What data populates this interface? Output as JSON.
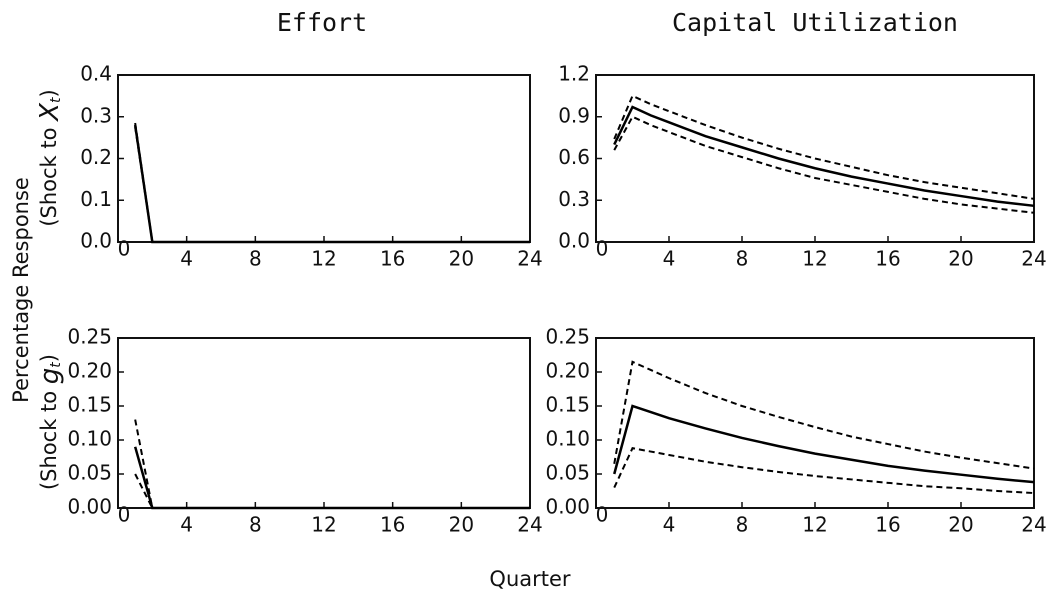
{
  "column_titles": [
    "Effort",
    "Capital Utilization"
  ],
  "y_label": "Percentage Response",
  "row_labels": [
    {
      "prefix": "(Shock to ",
      "symbol": "X",
      "subscript": "t",
      "suffix": ")"
    },
    {
      "prefix": "(Shock to ",
      "symbol": "g",
      "subscript": "t",
      "suffix": ")"
    }
  ],
  "x_label": "Quarter",
  "chart_data": [
    {
      "type": "line",
      "x": [
        1,
        2,
        3,
        4,
        6,
        8,
        10,
        12,
        14,
        16,
        18,
        20,
        22,
        24
      ],
      "series": [
        {
          "color": "#000000",
          "dashed": false,
          "values": [
            0.28,
            0,
            0,
            0,
            0,
            0,
            0,
            0,
            0,
            0,
            0,
            0,
            0,
            0
          ]
        },
        {
          "color": "#000000",
          "dashed": true,
          "values": [
            0.285,
            0,
            0,
            0,
            0,
            0,
            0,
            0,
            0,
            0,
            0,
            0,
            0,
            0
          ]
        },
        {
          "color": "#000000",
          "dashed": true,
          "values": [
            0.275,
            0,
            0,
            0,
            0,
            0,
            0,
            0,
            0,
            0,
            0,
            0,
            0,
            0
          ]
        }
      ],
      "xlim": [
        0,
        24
      ],
      "xticks": [
        0,
        4,
        8,
        12,
        16,
        20,
        24
      ],
      "ylim": [
        0,
        0.4
      ],
      "yticks": [
        {
          "value": 0,
          "label": "0.0"
        },
        0.1,
        0.2,
        0.3,
        0.4
      ]
    },
    {
      "type": "line",
      "x": [
        1,
        2,
        3,
        4,
        6,
        8,
        10,
        12,
        14,
        16,
        18,
        20,
        22,
        24
      ],
      "series": [
        {
          "color": "#000000",
          "dashed": false,
          "values": [
            0.7,
            0.97,
            0.91,
            0.86,
            0.76,
            0.68,
            0.6,
            0.53,
            0.47,
            0.42,
            0.37,
            0.33,
            0.29,
            0.26
          ]
        },
        {
          "color": "#000000",
          "dashed": true,
          "values": [
            0.74,
            1.05,
            0.99,
            0.94,
            0.84,
            0.75,
            0.67,
            0.6,
            0.54,
            0.48,
            0.43,
            0.39,
            0.35,
            0.31
          ]
        },
        {
          "color": "#000000",
          "dashed": true,
          "values": [
            0.66,
            0.9,
            0.84,
            0.79,
            0.69,
            0.61,
            0.53,
            0.46,
            0.41,
            0.36,
            0.31,
            0.27,
            0.24,
            0.21
          ]
        }
      ],
      "xlim": [
        0,
        24
      ],
      "xticks": [
        0,
        4,
        8,
        12,
        16,
        20,
        24
      ],
      "ylim": [
        0,
        1.2
      ],
      "yticks": [
        {
          "value": 0,
          "label": "0.0"
        },
        0.3,
        0.6,
        0.9,
        1.2
      ]
    },
    {
      "type": "line",
      "x": [
        1,
        2,
        3,
        4,
        6,
        8,
        10,
        12,
        14,
        16,
        18,
        20,
        22,
        24
      ],
      "series": [
        {
          "color": "#000000",
          "dashed": false,
          "values": [
            0.09,
            0,
            0,
            0,
            0,
            0,
            0,
            0,
            0,
            0,
            0,
            0,
            0,
            0
          ]
        },
        {
          "color": "#000000",
          "dashed": true,
          "values": [
            0.13,
            0,
            0,
            0,
            0,
            0,
            0,
            0,
            0,
            0,
            0,
            0,
            0,
            0
          ]
        },
        {
          "color": "#000000",
          "dashed": true,
          "values": [
            0.05,
            0,
            0,
            0,
            0,
            0,
            0,
            0,
            0,
            0,
            0,
            0,
            0,
            0
          ]
        }
      ],
      "xlim": [
        0,
        24
      ],
      "xticks": [
        0,
        4,
        8,
        12,
        16,
        20,
        24
      ],
      "ylim": [
        0,
        0.25
      ],
      "yticks": [
        {
          "value": 0,
          "label": "0.00"
        },
        0.05,
        {
          "value": 0.1,
          "label": "0.10"
        },
        0.15,
        {
          "value": 0.2,
          "label": "0.20"
        },
        0.25
      ]
    },
    {
      "type": "line",
      "x": [
        1,
        2,
        3,
        4,
        6,
        8,
        10,
        12,
        14,
        16,
        18,
        20,
        22,
        24
      ],
      "series": [
        {
          "color": "#000000",
          "dashed": false,
          "values": [
            0.05,
            0.15,
            0.141,
            0.132,
            0.117,
            0.103,
            0.091,
            0.08,
            0.071,
            0.062,
            0.055,
            0.049,
            0.043,
            0.038
          ]
        },
        {
          "color": "#000000",
          "dashed": true,
          "values": [
            0.065,
            0.215,
            0.203,
            0.191,
            0.169,
            0.15,
            0.134,
            0.119,
            0.105,
            0.094,
            0.083,
            0.074,
            0.066,
            0.058
          ]
        },
        {
          "color": "#000000",
          "dashed": true,
          "values": [
            0.03,
            0.088,
            0.083,
            0.078,
            0.068,
            0.06,
            0.053,
            0.047,
            0.042,
            0.037,
            0.032,
            0.029,
            0.025,
            0.022
          ]
        }
      ],
      "xlim": [
        0,
        24
      ],
      "xticks": [
        0,
        4,
        8,
        12,
        16,
        20,
        24
      ],
      "ylim": [
        0,
        0.25
      ],
      "yticks": [
        {
          "value": 0,
          "label": "0.00"
        },
        0.05,
        {
          "value": 0.1,
          "label": "0.10"
        },
        0.15,
        {
          "value": 0.2,
          "label": "0.20"
        },
        0.25
      ]
    }
  ]
}
